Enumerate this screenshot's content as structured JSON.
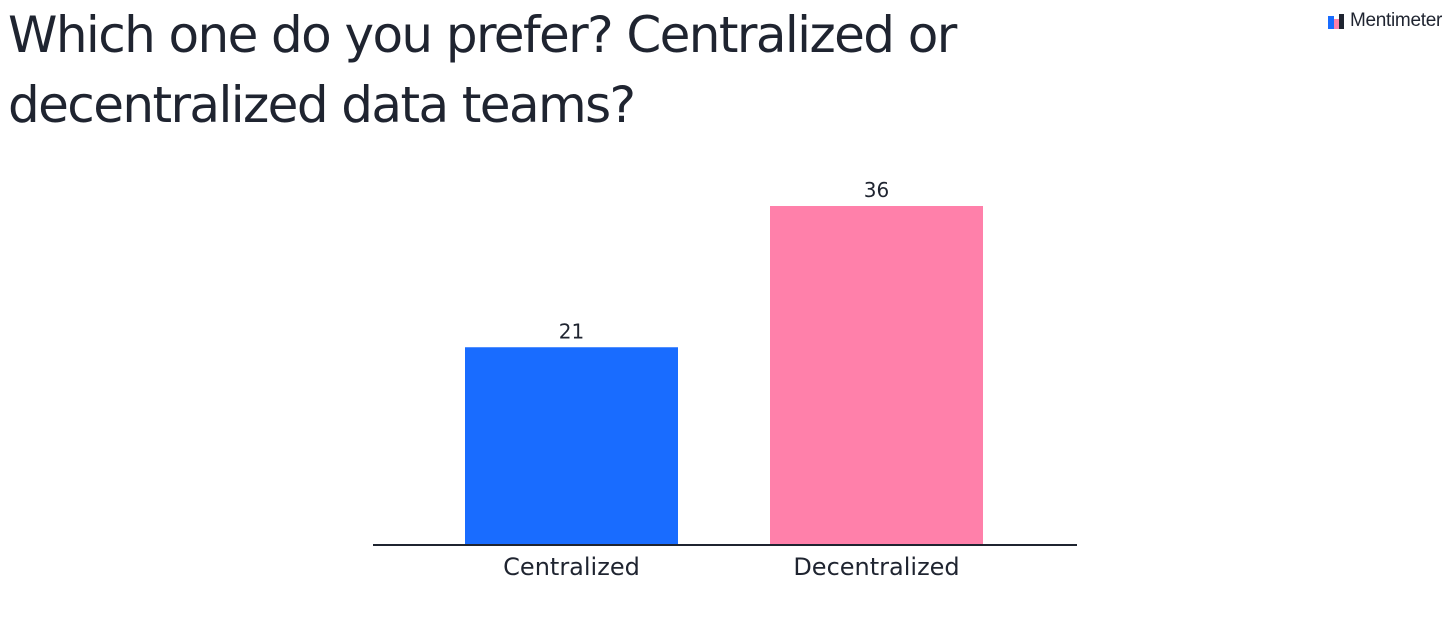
{
  "question": {
    "title": "Which one do you prefer? Centralized or decentralized data teams?"
  },
  "brand": {
    "name": "Mentimeter",
    "logo_icon": "mentimeter-logo-icon",
    "logo_colors": [
      "#196cff",
      "#ff7fa9",
      "#1f2430"
    ]
  },
  "chart_data": {
    "type": "bar",
    "title": "Which one do you prefer? Centralized or decentralized data teams?",
    "categories": [
      "Centralized",
      "Decentralized"
    ],
    "values": [
      21,
      36
    ],
    "colors": [
      "#196cff",
      "#ff80aa"
    ],
    "xlabel": "",
    "ylabel": "",
    "ylim": [
      0,
      36
    ],
    "grid": false,
    "legend": "none"
  }
}
